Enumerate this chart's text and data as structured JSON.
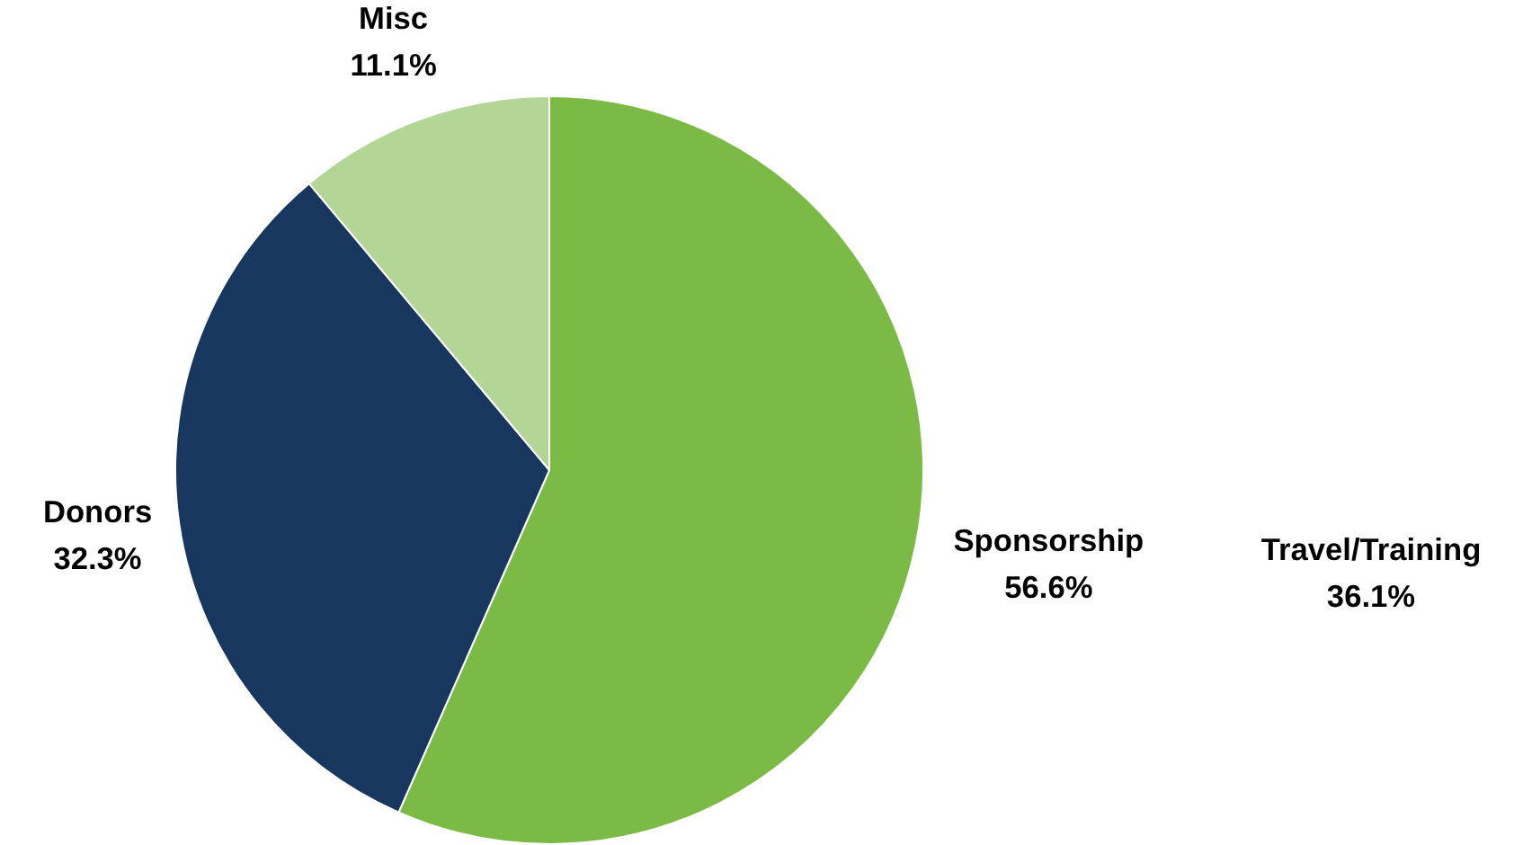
{
  "chart_data": {
    "type": "pie",
    "categories": [
      "Sponsorship",
      "Donors",
      "Misc"
    ],
    "values": [
      56.6,
      32.3,
      11.1
    ],
    "colors": [
      "#7aba45",
      "#17375e",
      "#b3d595"
    ],
    "value_labels": [
      "56.6%",
      "32.3%",
      "11.1%"
    ],
    "annotations": [
      "Travel/Training\n36.1%"
    ]
  }
}
